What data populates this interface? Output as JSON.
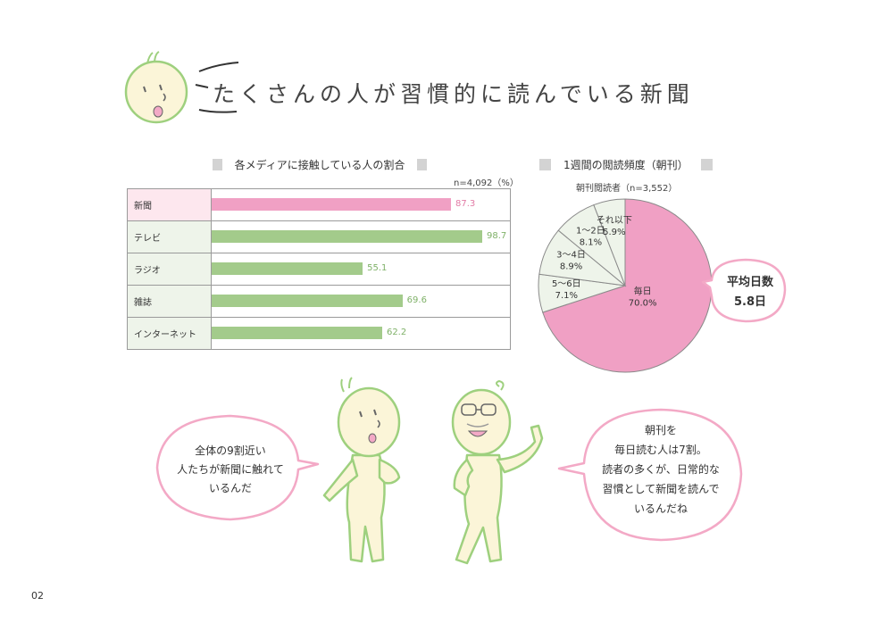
{
  "page": {
    "title": "たくさんの人が習慣的に読んでいる新聞",
    "page_number": "02"
  },
  "bar_section": {
    "title": "各メディアに接触している人の割合",
    "note": "n=4,092（%）"
  },
  "pie_section": {
    "title": "1週間の閲読頻度（朝刊）",
    "note": "朝刊閲読者（n=3,552）"
  },
  "average_badge": {
    "line1": "平均日数",
    "line2": "5.8日"
  },
  "bubble_left": {
    "lines": [
      "全体の9割近い",
      "人たちが新聞に触れて",
      "いるんだ"
    ]
  },
  "bubble_right": {
    "lines": [
      "朝刊を",
      "毎日読む人は7割。",
      "読者の多くが、日常的な",
      "習慣として新聞を読んで",
      "いるんだね"
    ]
  },
  "colors": {
    "pink": "#f0a0c4",
    "green": "#a3cb8b",
    "pink_text": "#e27ca6",
    "green_text": "#7fb168",
    "pie_light": "#eef4ea",
    "outline_green": "#9ed07e",
    "bubble_pink": "#f3a9c6"
  },
  "chart_data": [
    {
      "type": "bar",
      "title": "各メディアに接触している人の割合",
      "unit_note": "n=4,092（%）",
      "categories": [
        "新聞",
        "テレビ",
        "ラジオ",
        "雑誌",
        "インターネット"
      ],
      "values": [
        87.3,
        98.7,
        55.1,
        69.6,
        62.2
      ],
      "value_labels": [
        "87.3",
        "98.7",
        "55.1",
        "69.6",
        "62.2"
      ],
      "xlim": [
        0,
        100
      ],
      "highlight": "新聞"
    },
    {
      "type": "pie",
      "title": "1週間の閲読頻度（朝刊）",
      "subtitle": "朝刊閲読者（n=3,552）",
      "slices": [
        {
          "label": "毎日",
          "value": 70.0,
          "value_label": "70.0%"
        },
        {
          "label": "5〜6日",
          "value": 7.1,
          "value_label": "7.1%"
        },
        {
          "label": "3〜4日",
          "value": 8.9,
          "value_label": "8.9%"
        },
        {
          "label": "1〜2日",
          "value": 8.1,
          "value_label": "8.1%"
        },
        {
          "label": "それ以下",
          "value": 5.9,
          "value_label": "5.9%"
        }
      ]
    }
  ]
}
